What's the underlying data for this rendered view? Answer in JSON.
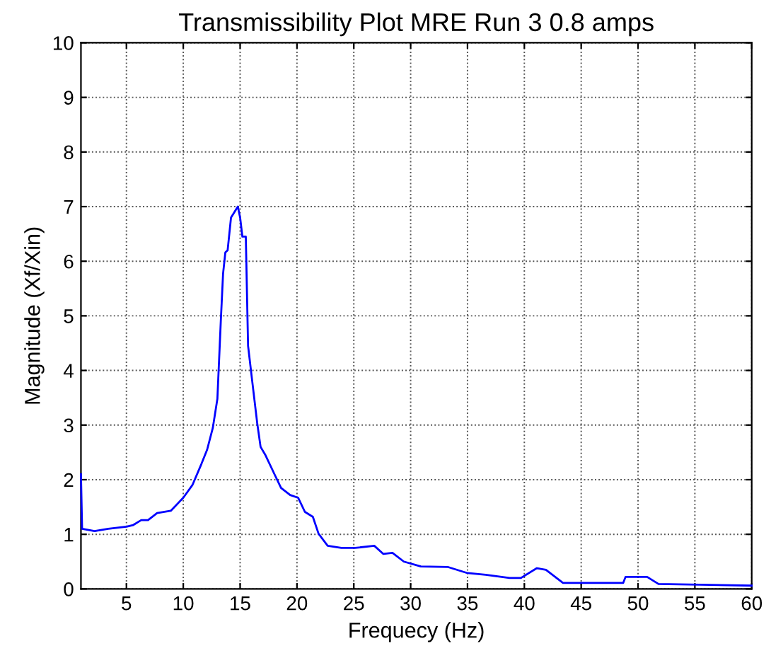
{
  "chart_data": {
    "type": "line",
    "title": "Transmissibility Plot MRE Run 3 0.8 amps",
    "xlabel": "Frequecy (Hz)",
    "ylabel": "Magnitude (Xf/Xin)",
    "xlim": [
      1,
      60
    ],
    "xticks": [
      5,
      10,
      15,
      20,
      25,
      30,
      35,
      40,
      45,
      50,
      55,
      60
    ],
    "ylim": [
      0,
      10
    ],
    "yticks": [
      0,
      1,
      2,
      3,
      4,
      5,
      6,
      7,
      8,
      9,
      10
    ],
    "grid": true,
    "line_style": "solid",
    "marker": "none",
    "series": [
      {
        "color": "#0000ff",
        "x": [
          1,
          1.1,
          2.2,
          3.4,
          5,
          5.6,
          6.3,
          6.9,
          7.7,
          8.9,
          10,
          10.8,
          11.6,
          12.1,
          12.6,
          13.0,
          13.3,
          13.5,
          13.7,
          13.9,
          14.2,
          14.5,
          14.8,
          15.0,
          15.2,
          15.5,
          15.7,
          16.1,
          16.5,
          16.8,
          17.2,
          18,
          18.6,
          19.4,
          20.1,
          20.7,
          21.4,
          21.9,
          22.7,
          23.9,
          25.1,
          26.8,
          27.6,
          28.4,
          29.4,
          30.9,
          33.3,
          35,
          36.6,
          38.7,
          39.7,
          41.1,
          41.9,
          43.4,
          48.7,
          48.9,
          50.8,
          51.8,
          60
        ],
        "values": [
          2.1,
          1.1,
          1.06,
          1.1,
          1.14,
          1.17,
          1.26,
          1.26,
          1.39,
          1.43,
          1.67,
          1.9,
          2.29,
          2.55,
          2.95,
          3.48,
          4.9,
          5.77,
          6.16,
          6.2,
          6.8,
          6.9,
          7.0,
          6.8,
          6.45,
          6.45,
          4.45,
          3.74,
          3.04,
          2.6,
          2.46,
          2.11,
          1.85,
          1.72,
          1.67,
          1.41,
          1.32,
          1.01,
          0.79,
          0.75,
          0.75,
          0.79,
          0.64,
          0.66,
          0.5,
          0.41,
          0.4,
          0.29,
          0.26,
          0.2,
          0.2,
          0.38,
          0.35,
          0.11,
          0.11,
          0.22,
          0.22,
          0.09,
          0.06
        ]
      }
    ]
  }
}
